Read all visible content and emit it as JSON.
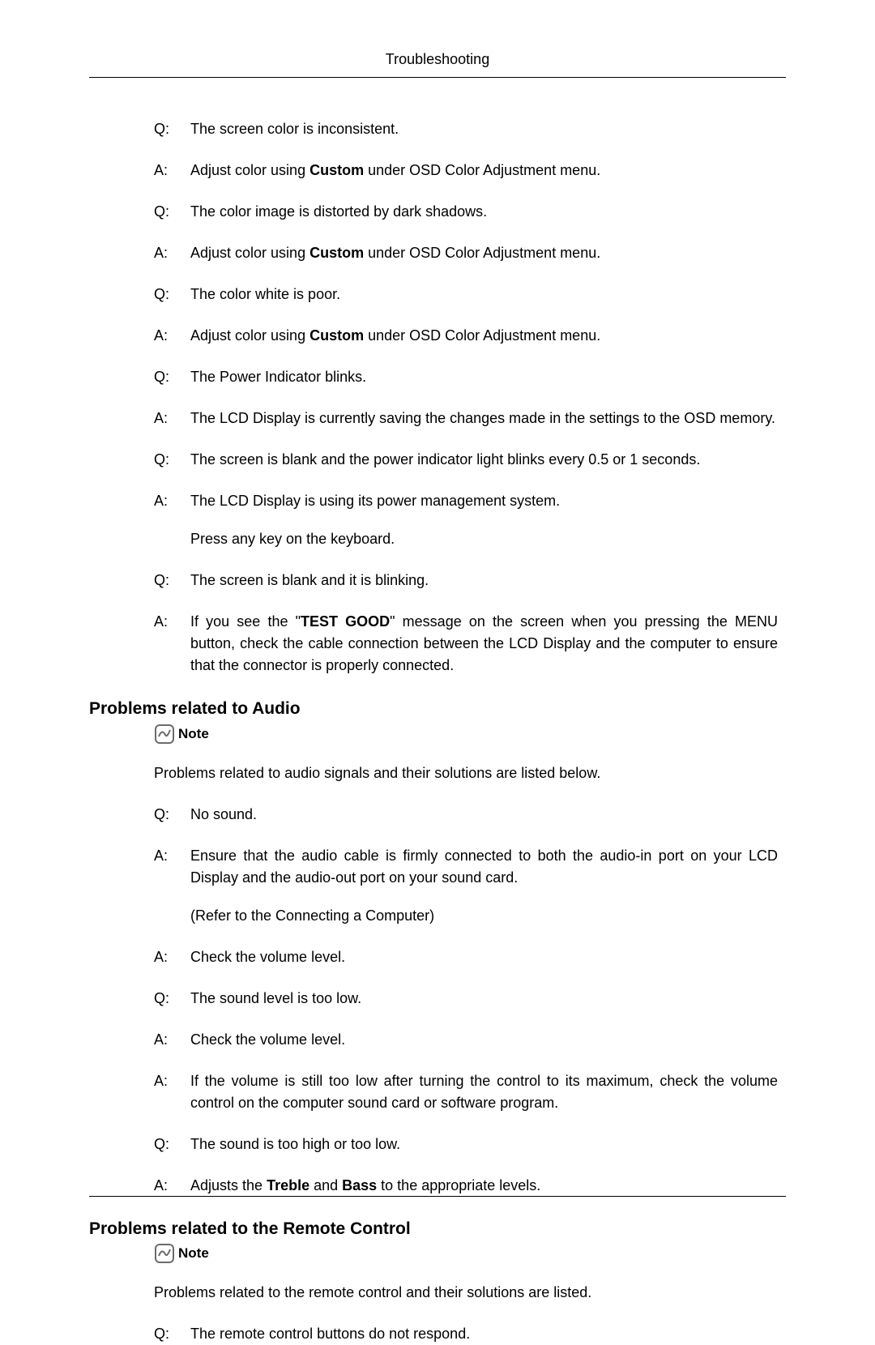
{
  "page_header": "Troubleshooting",
  "qa_block_1": [
    {
      "p": "Q:",
      "t": "The screen color is inconsistent.",
      "bold": []
    },
    {
      "p": "A:",
      "t": "Adjust color using {0} under OSD Color Adjustment menu.",
      "bold": [
        "Custom"
      ]
    },
    {
      "p": "Q:",
      "t": "The color image is distorted by dark shadows.",
      "bold": []
    },
    {
      "p": "A:",
      "t": "Adjust color using {0} under OSD Color Adjustment menu.",
      "bold": [
        "Custom"
      ]
    },
    {
      "p": "Q:",
      "t": "The color white is poor.",
      "bold": []
    },
    {
      "p": "A:",
      "t": "Adjust color using {0} under OSD Color Adjustment menu.",
      "bold": [
        "Custom"
      ]
    },
    {
      "p": "Q:",
      "t": "The Power Indicator blinks.",
      "bold": []
    },
    {
      "p": "A:",
      "t": "The LCD Display is currently saving the changes made in the settings to the OSD memory.",
      "bold": []
    },
    {
      "p": "Q:",
      "t": "The screen is blank and the power indicator light blinks every 0.5 or 1 seconds.",
      "bold": []
    },
    {
      "p": "A:",
      "t": "The LCD Display is using its power management system.",
      "bold": [],
      "sub": "Press any key on the keyboard."
    },
    {
      "p": "Q:",
      "t": "The screen is blank and it is blinking.",
      "bold": []
    },
    {
      "p": "A:",
      "t": "If you see the \"{0}\" message on the screen when you pressing the MENU button, check the cable connection between the LCD Display and the computer to ensure that the connector is properly connected.",
      "bold": [
        "TEST GOOD"
      ]
    }
  ],
  "section_audio": {
    "heading": "Problems related to Audio",
    "note_label": "Note",
    "intro": "Problems related to audio signals and their solutions are listed below.",
    "qa": [
      {
        "p": "Q:",
        "t": "No sound.",
        "bold": []
      },
      {
        "p": "A:",
        "t": "Ensure that the audio cable is firmly connected to both the audio-in port on your LCD Display and the audio-out port on your sound card.",
        "bold": [],
        "sub": "(Refer to the Connecting a Computer)"
      },
      {
        "p": "A:",
        "t": "Check the volume level.",
        "bold": []
      },
      {
        "p": "Q:",
        "t": "The sound level is too low.",
        "bold": []
      },
      {
        "p": "A:",
        "t": "Check the volume level.",
        "bold": []
      },
      {
        "p": "A:",
        "t": "If the volume is still too low after turning the control to its maximum, check the volume control on the computer sound card or software program.",
        "bold": []
      },
      {
        "p": "Q:",
        "t": "The sound is too high or too low.",
        "bold": []
      },
      {
        "p": "A:",
        "t": "Adjusts the {0} and {1} to the appropriate levels.",
        "bold": [
          "Treble",
          "Bass"
        ]
      }
    ]
  },
  "section_remote": {
    "heading": "Problems related to the Remote Control",
    "note_label": "Note",
    "intro": "Problems related to the remote control and their solutions are listed.",
    "qa": [
      {
        "p": "Q:",
        "t": "The remote control buttons do not respond.",
        "bold": []
      }
    ]
  },
  "note_icon_svg": {
    "stroke": "#6b6b6b",
    "stroke_width": 2
  }
}
